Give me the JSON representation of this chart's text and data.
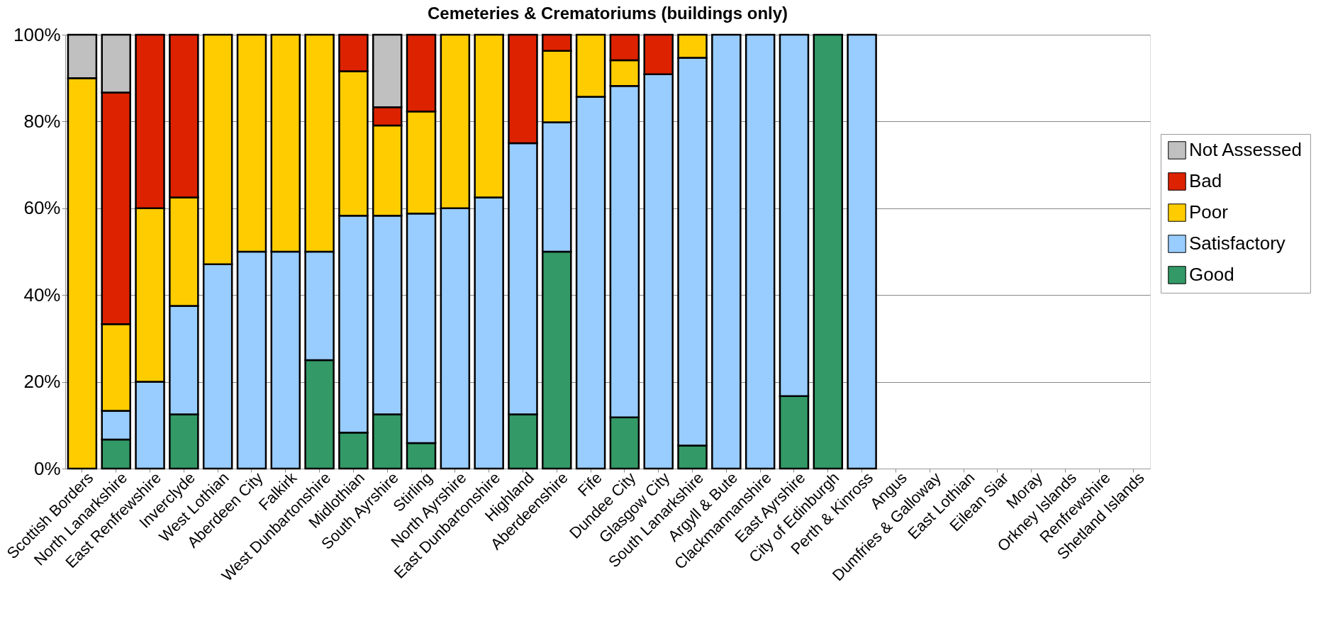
{
  "chart_data": {
    "type": "bar",
    "title": "Cemeteries & Crematoriums (buildings only)",
    "stacked": true,
    "categories": [
      "Scottish Borders",
      "North Lanarkshire",
      "East Renfrewshire",
      "Inverclyde",
      "West Lothian",
      "Aberdeen City",
      "Falkirk",
      "West Dunbartonshire",
      "Midlothian",
      "South Ayrshire",
      "Stirling",
      "North Ayrshire",
      "East Dunbartonshire",
      "Highland",
      "Aberdeenshire",
      "Fife",
      "Dundee City",
      "Glasgow City",
      "South Lanarkshire",
      "Argyll & Bute",
      "Clackmannanshire",
      "East Ayrshire",
      "City of Edinburgh",
      "Perth & Kinross",
      "Angus",
      "Dumfries & Galloway",
      "East Lothian",
      "Eilean Siar",
      "Moray",
      "Orkney Islands",
      "Renfrewshire",
      "Shetland Islands"
    ],
    "series": [
      {
        "name": "Good",
        "color": "#339966",
        "values": [
          null,
          6.7,
          null,
          12.5,
          null,
          null,
          null,
          25,
          8.3,
          12.5,
          5.9,
          null,
          null,
          12.5,
          50,
          null,
          11.8,
          null,
          5.3,
          null,
          null,
          16.7,
          100,
          null,
          null,
          null,
          null,
          null,
          null,
          null,
          null,
          null
        ]
      },
      {
        "name": "Satisfactory",
        "color": "#99ccff",
        "values": [
          null,
          6.6,
          20,
          25,
          47.1,
          50,
          50,
          25,
          50,
          45.8,
          52.9,
          60,
          62.5,
          62.5,
          29.8,
          85.7,
          76.4,
          90.9,
          89.4,
          100,
          100,
          83.3,
          null,
          100,
          null,
          null,
          null,
          null,
          null,
          null,
          null,
          null
        ]
      },
      {
        "name": "Poor",
        "color": "#ffcc00",
        "values": [
          90,
          20,
          40,
          25,
          52.9,
          50,
          50,
          50,
          33.3,
          20.8,
          23.5,
          40,
          37.5,
          null,
          16.5,
          14.3,
          5.9,
          null,
          5.3,
          null,
          null,
          null,
          null,
          null,
          null,
          null,
          null,
          null,
          null,
          null,
          null,
          null
        ]
      },
      {
        "name": "Bad",
        "color": "#dd2200",
        "values": [
          null,
          53.4,
          40,
          37.5,
          null,
          null,
          null,
          null,
          8.4,
          4.2,
          17.7,
          null,
          null,
          25,
          3.7,
          null,
          5.9,
          9.1,
          null,
          null,
          null,
          null,
          null,
          null,
          null,
          null,
          null,
          null,
          null,
          null,
          null,
          null
        ]
      },
      {
        "name": "Not Assessed",
        "color": "#c0c0c0",
        "values": [
          10,
          13.3,
          null,
          null,
          null,
          null,
          null,
          null,
          null,
          16.7,
          null,
          null,
          null,
          null,
          null,
          null,
          null,
          null,
          null,
          null,
          null,
          null,
          null,
          null,
          null,
          null,
          null,
          null,
          null,
          null,
          null,
          null
        ]
      }
    ],
    "ylim": [
      0,
      100
    ],
    "yticks": [
      {
        "value": 0,
        "label": "0%"
      },
      {
        "value": 20,
        "label": "20%"
      },
      {
        "value": 40,
        "label": "40%"
      },
      {
        "value": 60,
        "label": "60%"
      },
      {
        "value": 80,
        "label": "80%"
      },
      {
        "value": 100,
        "label": "100%"
      }
    ],
    "grid": "y",
    "legend": "right"
  }
}
